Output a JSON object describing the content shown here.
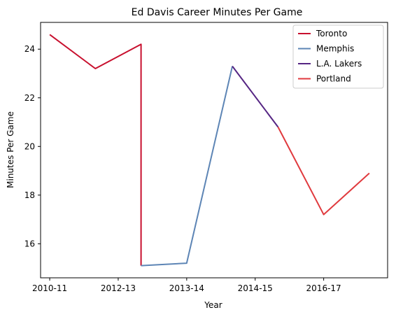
{
  "chart_data": {
    "type": "line",
    "title": "Ed Davis  Career Minutes Per Game",
    "xlabel": "Year",
    "ylabel": "Minutes Per Game",
    "xlim": [
      -0.2,
      7.4
    ],
    "ylim": [
      14.6,
      25.1
    ],
    "x_ticks": [
      {
        "x": 0,
        "label": "2010-11"
      },
      {
        "x": 1.5,
        "label": "2012-13"
      },
      {
        "x": 3.0,
        "label": "2013-14"
      },
      {
        "x": 4.5,
        "label": "2014-15"
      },
      {
        "x": 6.0,
        "label": "2016-17"
      }
    ],
    "y_ticks": [
      16,
      18,
      20,
      22,
      24
    ],
    "legend_position": "top-right",
    "series": [
      {
        "name": "Toronto",
        "color": "#c8102e",
        "points": [
          [
            0,
            24.6
          ],
          [
            1,
            23.2
          ],
          [
            2,
            24.2
          ],
          [
            2,
            15.1
          ]
        ]
      },
      {
        "name": "Memphis",
        "color": "#5d85b5",
        "points": [
          [
            2,
            15.1
          ],
          [
            3,
            15.2
          ],
          [
            4,
            23.3
          ]
        ]
      },
      {
        "name": "L.A. Lakers",
        "color": "#552583",
        "points": [
          [
            4,
            23.3
          ],
          [
            5,
            20.8
          ]
        ]
      },
      {
        "name": "Portland",
        "color": "#e03a3e",
        "points": [
          [
            5,
            20.8
          ],
          [
            6,
            17.2
          ],
          [
            7,
            18.9
          ]
        ]
      }
    ]
  }
}
